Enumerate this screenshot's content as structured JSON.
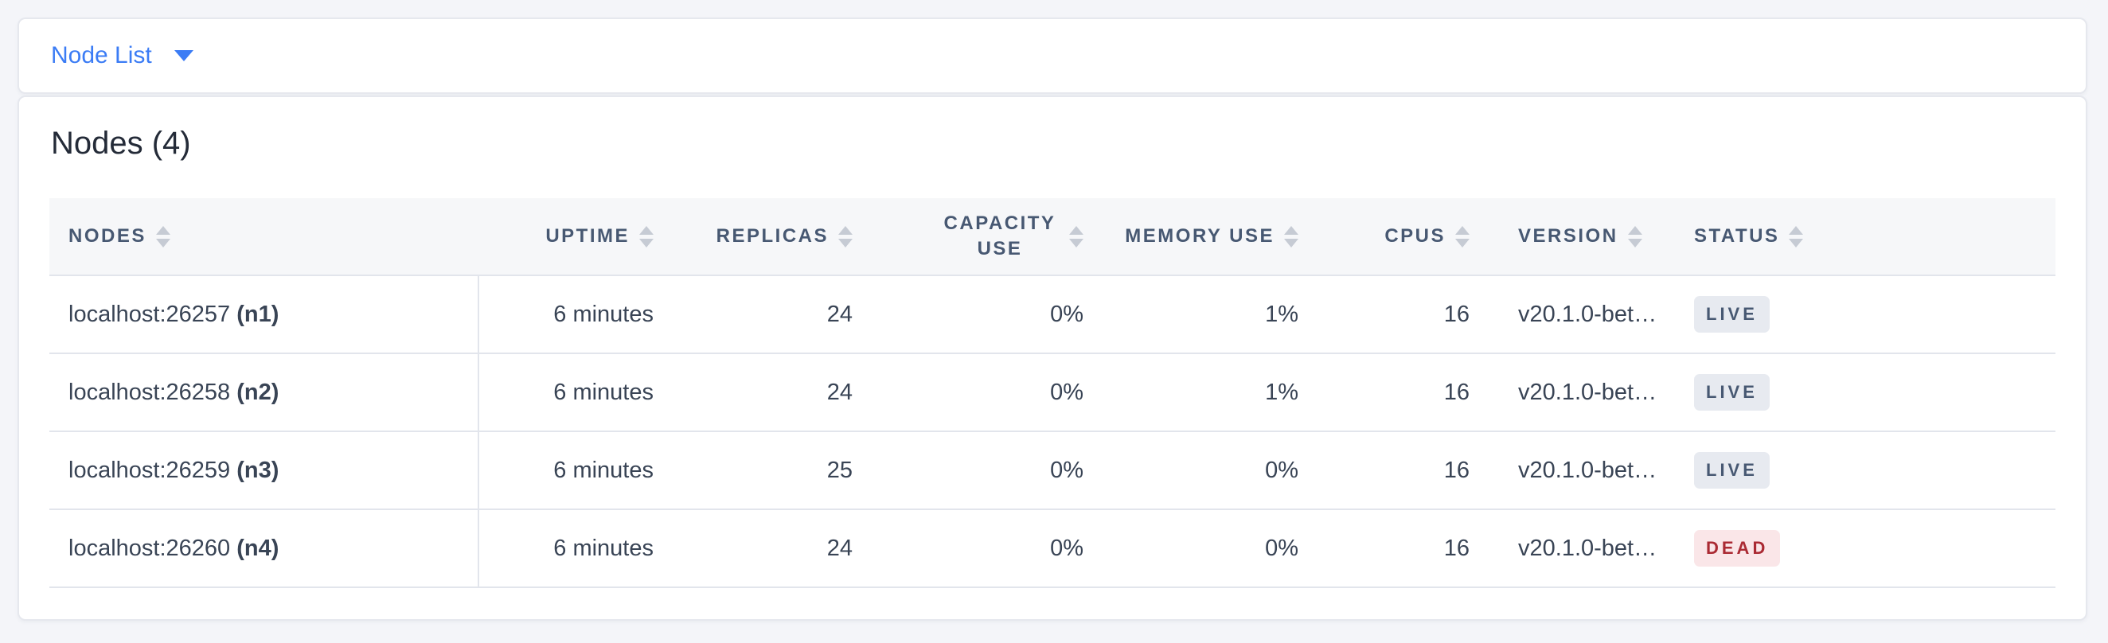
{
  "colors": {
    "accent_blue": "#3B7CF5",
    "live_badge_bg": "#E7EAF0",
    "live_badge_text": "#475872",
    "dead_badge_bg": "#FAE6E8",
    "dead_badge_text": "#AA2A33"
  },
  "topbar": {
    "dropdown_label": "Node List"
  },
  "main": {
    "title": "Nodes (4)",
    "table": {
      "headers": {
        "nodes": "NODES",
        "uptime": "UPTIME",
        "replicas": "REPLICAS",
        "capacity": "CAPACITY USE",
        "memory": "MEMORY USE",
        "cpus": "CPUS",
        "version": "VERSION",
        "status": "STATUS"
      },
      "rows": [
        {
          "address": "localhost:26257",
          "node_id": "(n1)",
          "uptime": "6 minutes",
          "replicas": "24",
          "capacity_use": "0%",
          "memory_use": "1%",
          "cpus": "16",
          "version": "v20.1.0-bet…",
          "status": "LIVE"
        },
        {
          "address": "localhost:26258",
          "node_id": "(n2)",
          "uptime": "6 minutes",
          "replicas": "24",
          "capacity_use": "0%",
          "memory_use": "1%",
          "cpus": "16",
          "version": "v20.1.0-bet…",
          "status": "LIVE"
        },
        {
          "address": "localhost:26259",
          "node_id": "(n3)",
          "uptime": "6 minutes",
          "replicas": "25",
          "capacity_use": "0%",
          "memory_use": "0%",
          "cpus": "16",
          "version": "v20.1.0-bet…",
          "status": "LIVE"
        },
        {
          "address": "localhost:26260",
          "node_id": "(n4)",
          "uptime": "6 minutes",
          "replicas": "24",
          "capacity_use": "0%",
          "memory_use": "0%",
          "cpus": "16",
          "version": "v20.1.0-bet…",
          "status": "DEAD"
        }
      ]
    }
  }
}
